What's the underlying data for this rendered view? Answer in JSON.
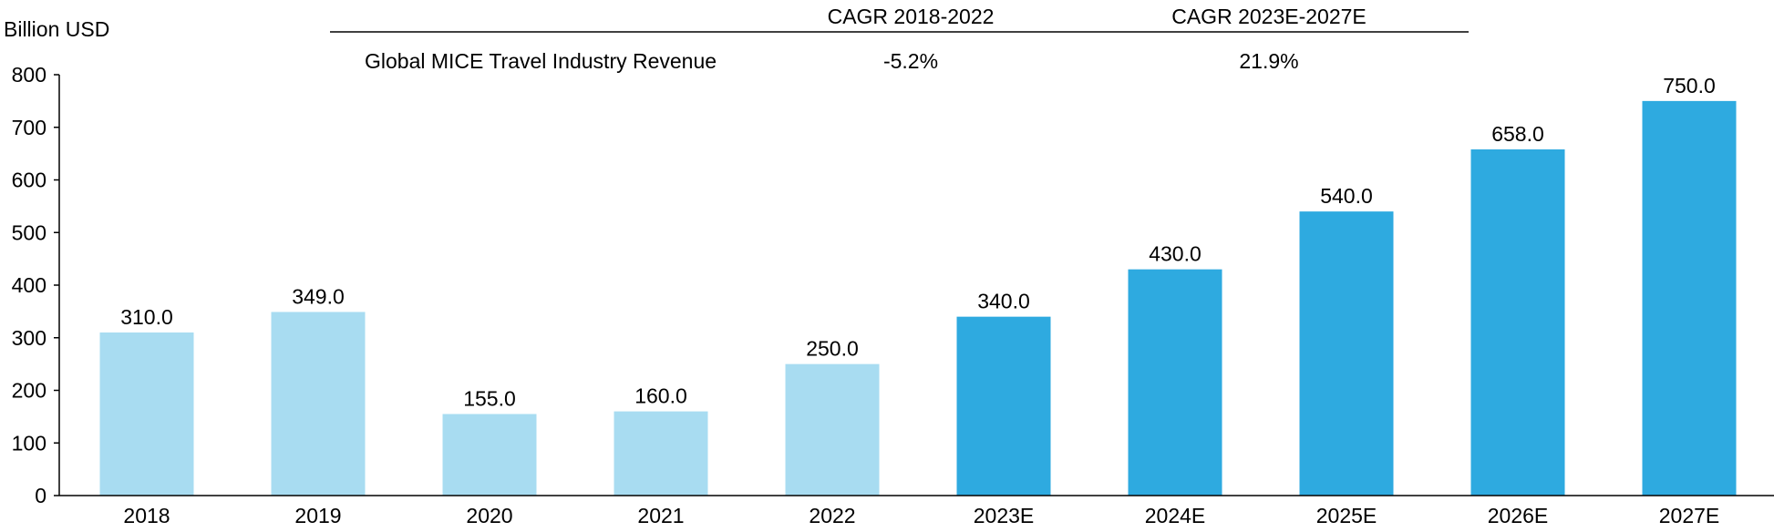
{
  "chart_data": {
    "type": "bar",
    "title": "",
    "ylabel": "Billion USD",
    "xlabel": "",
    "ylim": [
      0,
      800
    ],
    "yticks": [
      0,
      100,
      200,
      300,
      400,
      500,
      600,
      700,
      800
    ],
    "categories": [
      "2018",
      "2019",
      "2020",
      "2021",
      "2022",
      "2023E",
      "2024E",
      "2025E",
      "2026E",
      "2027E"
    ],
    "values": [
      310.0,
      349.0,
      155.0,
      160.0,
      250.0,
      340.0,
      430.0,
      540.0,
      658.0,
      750.0
    ],
    "data_labels": [
      "310.0",
      "349.0",
      "155.0",
      "160.0",
      "250.0",
      "340.0",
      "430.0",
      "540.0",
      "658.0",
      "750.0"
    ],
    "bar_groups": [
      "historical",
      "historical",
      "historical",
      "historical",
      "historical",
      "forecast",
      "forecast",
      "forecast",
      "forecast",
      "forecast"
    ],
    "colors": {
      "historical": "#a8dcf1",
      "forecast": "#2eaae0"
    },
    "grid": false,
    "cagr_table": {
      "headers": [
        "CAGR 2018-2022",
        "CAGR 2023E-2027E"
      ],
      "row_label": "Global MICE Travel Industry Revenue",
      "values": [
        "-5.2%",
        "21.9%"
      ]
    }
  }
}
